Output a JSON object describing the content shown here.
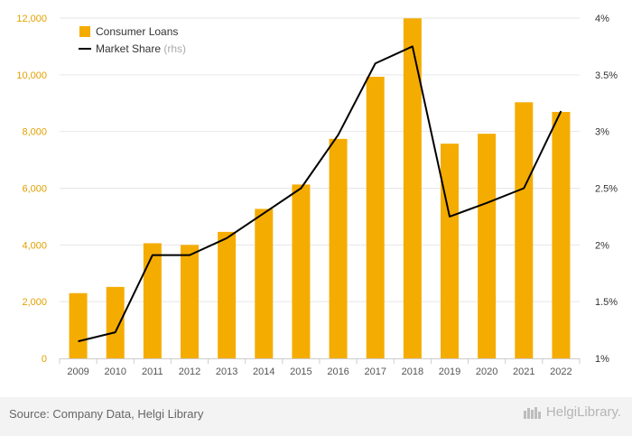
{
  "chart_data": {
    "type": "bar",
    "categories": [
      "2009",
      "2010",
      "2011",
      "2012",
      "2013",
      "2014",
      "2015",
      "2016",
      "2017",
      "2018",
      "2019",
      "2020",
      "2021",
      "2022"
    ],
    "series": [
      {
        "name": "Consumer Loans",
        "type": "bar",
        "axis": "left",
        "color": "#f5ac00",
        "values": [
          2300,
          2520,
          4060,
          4000,
          4460,
          5270,
          6130,
          7740,
          9930,
          11990,
          7570,
          7920,
          9030,
          8690
        ]
      },
      {
        "name": "Market Share",
        "type": "line",
        "axis": "right",
        "color": "#000000",
        "values": [
          1.15,
          1.23,
          1.91,
          1.91,
          2.06,
          2.28,
          2.5,
          2.97,
          3.6,
          3.75,
          2.25,
          2.37,
          2.5,
          3.18
        ]
      }
    ],
    "legend": [
      {
        "label": "Consumer Loans",
        "suffix": ""
      },
      {
        "label": "Market Share",
        "suffix": "(rhs)"
      }
    ],
    "legend_position": "top-left",
    "y_left": {
      "min": 0,
      "max": 12000,
      "ticks": [
        "0",
        "2,000",
        "4,000",
        "6,000",
        "8,000",
        "10,000",
        "12,000"
      ],
      "tick_color": "#e0a100"
    },
    "y_right": {
      "min": 1,
      "max": 4,
      "ticks": [
        "1%",
        "1.5%",
        "2%",
        "2.5%",
        "3%",
        "3.5%",
        "4%"
      ]
    },
    "grid": true
  },
  "footer": {
    "source": "Source: Company Data, Helgi Library",
    "logo": "HelgiLibrary."
  }
}
